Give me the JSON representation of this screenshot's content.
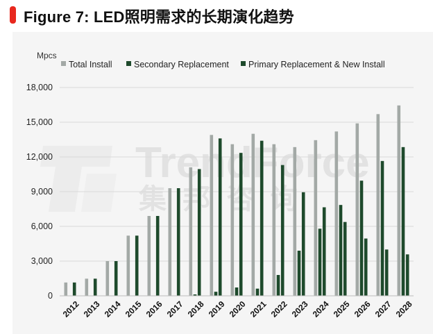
{
  "header": {
    "title": "Figure 7: LED照明需求的长期演化趋势"
  },
  "watermark": {
    "brand": "TrendForce",
    "cn": "集 邦 咨 询"
  },
  "colors": {
    "accent": "#e8281e",
    "total": "#a3a9a6",
    "secondary": "#1e4a2c",
    "primary": "#1e4a2c"
  },
  "chart_data": {
    "type": "bar",
    "title": "Figure 7: LED照明需求的长期演化趋势",
    "ylabel": "Mpcs",
    "xlabel": "",
    "ylim": [
      0,
      18000
    ],
    "yticks": [
      0,
      3000,
      6000,
      9000,
      12000,
      15000,
      18000
    ],
    "ytick_labels": [
      "0",
      "3,000",
      "6,000",
      "9,000",
      "12,000",
      "15,000",
      "18,000"
    ],
    "grid": true,
    "legend_position": "top",
    "categories": [
      "2012",
      "2013",
      "2014",
      "2015",
      "2016",
      "2017",
      "2018",
      "2019",
      "2020",
      "2021",
      "2022",
      "2023",
      "2024",
      "2025",
      "2026",
      "2027",
      "2028"
    ],
    "series": [
      {
        "name": "Total Install",
        "values": [
          1150,
          1480,
          3000,
          5200,
          6900,
          9300,
          11100,
          13900,
          13100,
          14000,
          13100,
          12850,
          13450,
          14200,
          14900,
          15700,
          16450
        ]
      },
      {
        "name": "Secondary Replacement",
        "values": [
          0,
          0,
          0,
          0,
          0,
          0,
          120,
          350,
          720,
          620,
          1800,
          3900,
          5800,
          7850,
          9950,
          11650,
          12850
        ]
      },
      {
        "name": "Primary Replacement & New Install",
        "values": [
          1150,
          1480,
          3000,
          5200,
          6900,
          9300,
          10950,
          13600,
          12350,
          13400,
          11300,
          8950,
          7650,
          6380,
          4950,
          4000,
          3580
        ]
      }
    ]
  }
}
